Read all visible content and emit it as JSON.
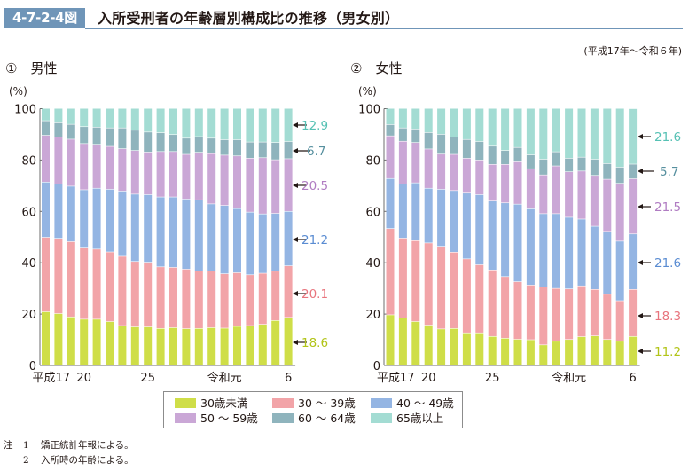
{
  "header": {
    "figure_number": "4-7-2-4図",
    "title": "入所受刑者の年齢層別構成比の推移（男女別）",
    "period": "(平成17年～令和６年)"
  },
  "colors": {
    "accent": "#6f95b8",
    "bands": [
      "#cfde48",
      "#f2a4a8",
      "#94b5e3",
      "#caa7d6",
      "#8fb4bd",
      "#a3dcd3"
    ],
    "label_text": [
      "#b2c418",
      "#e8747d",
      "#5a8cd2",
      "#b07cc2",
      "#57909f",
      "#56c1b4"
    ]
  },
  "legend": [
    "30歳未満",
    "30 ～ 39歳",
    "40 ～ 49歳",
    "50 ～ 59歳",
    "60 ～ 64歳",
    "65歳以上"
  ],
  "notes": {
    "head": "注",
    "items": [
      {
        "num": "1",
        "text": "矯正統計年報による。"
      },
      {
        "num": "2",
        "text": "入所時の年齢による。"
      }
    ]
  },
  "chart_data": [
    {
      "type": "bar",
      "stacked": true,
      "title": "①　男性",
      "ylabel": "(%)",
      "ylim": [
        0,
        100
      ],
      "yticks": [
        0,
        20,
        40,
        60,
        80,
        100
      ],
      "categories": [
        "平成17",
        "18",
        "19",
        "20",
        "21",
        "22",
        "23",
        "24",
        "25",
        "26",
        "27",
        "28",
        "29",
        "30",
        "令和元",
        "2",
        "3",
        "4",
        "5",
        "6"
      ],
      "xtick_labels": [
        {
          "index": 0,
          "label": "平成17"
        },
        {
          "index": 3,
          "label": "20"
        },
        {
          "index": 8,
          "label": "25"
        },
        {
          "index": 14,
          "label": "令和元"
        },
        {
          "index": 19,
          "label": "6"
        }
      ],
      "series": [
        {
          "name": "30歳未満",
          "values": [
            20.8,
            20.1,
            18.8,
            17.9,
            17.9,
            17.0,
            15.4,
            14.9,
            14.9,
            14.3,
            14.6,
            14.2,
            14.3,
            14.6,
            14.4,
            15.1,
            15.4,
            15.9,
            17.4,
            18.6
          ]
        },
        {
          "name": "30 ～ 39歳",
          "values": [
            29.0,
            29.3,
            29.3,
            27.7,
            27.3,
            27.1,
            27.0,
            25.5,
            25.2,
            24.0,
            23.5,
            23.2,
            22.4,
            22.1,
            21.2,
            20.9,
            19.8,
            19.9,
            19.2,
            20.1
          ]
        },
        {
          "name": "40 ～ 49歳",
          "values": [
            21.5,
            21.1,
            21.6,
            22.7,
            23.7,
            24.4,
            25.4,
            26.2,
            26.3,
            27.2,
            27.4,
            27.3,
            27.7,
            26.1,
            26.6,
            25.0,
            24.4,
            23.1,
            22.5,
            21.2
          ]
        },
        {
          "name": "50 ～ 59歳",
          "values": [
            18.2,
            18.3,
            18.3,
            18.0,
            17.1,
            16.7,
            16.5,
            17.0,
            16.6,
            17.7,
            17.7,
            17.4,
            18.5,
            19.6,
            19.6,
            20.5,
            21.0,
            21.9,
            20.9,
            20.5
          ]
        },
        {
          "name": "60 ～ 64歳",
          "values": [
            5.7,
            5.6,
            5.8,
            6.6,
            6.7,
            7.2,
            8.1,
            7.9,
            7.8,
            7.3,
            6.6,
            6.3,
            6.1,
            6.0,
            6.0,
            6.3,
            6.3,
            6.1,
            6.7,
            6.7
          ]
        },
        {
          "name": "65歳以上",
          "values": [
            4.8,
            5.6,
            6.2,
            7.1,
            7.3,
            7.6,
            7.6,
            8.5,
            9.2,
            9.5,
            10.2,
            11.6,
            11.0,
            11.6,
            12.2,
            12.2,
            13.1,
            13.1,
            13.3,
            12.9
          ]
        }
      ],
      "annotations": [
        "18.6",
        "20.1",
        "21.2",
        "20.5",
        "6.7",
        "12.9"
      ]
    },
    {
      "type": "bar",
      "stacked": true,
      "title": "②　女性",
      "ylabel": "(%)",
      "ylim": [
        0,
        100
      ],
      "yticks": [
        0,
        20,
        40,
        60,
        80,
        100
      ],
      "categories": [
        "平成17",
        "18",
        "19",
        "20",
        "21",
        "22",
        "23",
        "24",
        "25",
        "26",
        "27",
        "28",
        "29",
        "30",
        "令和元",
        "2",
        "3",
        "4",
        "5",
        "6"
      ],
      "xtick_labels": [
        {
          "index": 0,
          "label": "平成17"
        },
        {
          "index": 3,
          "label": "20"
        },
        {
          "index": 8,
          "label": "25"
        },
        {
          "index": 14,
          "label": "令和元"
        },
        {
          "index": 19,
          "label": "6"
        }
      ],
      "series": [
        {
          "name": "30歳未満",
          "values": [
            19.6,
            18.4,
            17.0,
            15.6,
            14.1,
            14.3,
            12.6,
            12.6,
            11.2,
            10.5,
            10.1,
            9.9,
            7.9,
            9.3,
            10.0,
            11.1,
            11.4,
            10.0,
            9.3,
            11.2
          ]
        },
        {
          "name": "30 ～ 39歳",
          "values": [
            33.6,
            31.1,
            31.5,
            32.0,
            32.2,
            29.7,
            28.8,
            26.5,
            25.9,
            24.0,
            22.4,
            21.3,
            22.6,
            20.6,
            19.7,
            19.8,
            18.1,
            17.6,
            15.8,
            18.3
          ]
        },
        {
          "name": "40 ～ 49歳",
          "values": [
            19.5,
            21.1,
            22.5,
            21.3,
            22.2,
            24.0,
            25.6,
            27.3,
            26.8,
            28.7,
            30.2,
            29.7,
            28.5,
            29.1,
            27.9,
            26.0,
            24.6,
            24.5,
            23.2,
            21.6
          ]
        },
        {
          "name": "50 ～ 59歳",
          "values": [
            16.6,
            16.6,
            15.7,
            15.3,
            13.7,
            14.1,
            13.6,
            13.5,
            14.3,
            15.0,
            16.5,
            15.6,
            15.1,
            18.6,
            17.7,
            18.7,
            19.8,
            20.3,
            22.5,
            21.5
          ]
        },
        {
          "name": "60 ～ 64歳",
          "values": [
            4.4,
            5.2,
            5.3,
            6.4,
            7.7,
            6.7,
            7.3,
            7.2,
            7.1,
            5.4,
            5.6,
            5.4,
            6.1,
            5.5,
            5.3,
            5.4,
            6.3,
            6.1,
            6.3,
            5.7
          ]
        },
        {
          "name": "65歳以上",
          "values": [
            6.3,
            7.6,
            8.0,
            9.4,
            10.1,
            11.2,
            12.1,
            12.9,
            14.7,
            16.4,
            15.2,
            18.1,
            19.8,
            16.9,
            19.4,
            19.0,
            19.8,
            21.5,
            22.9,
            21.6
          ]
        }
      ],
      "annotations": [
        "11.2",
        "18.3",
        "21.6",
        "21.5",
        "5.7",
        "21.6"
      ]
    }
  ]
}
